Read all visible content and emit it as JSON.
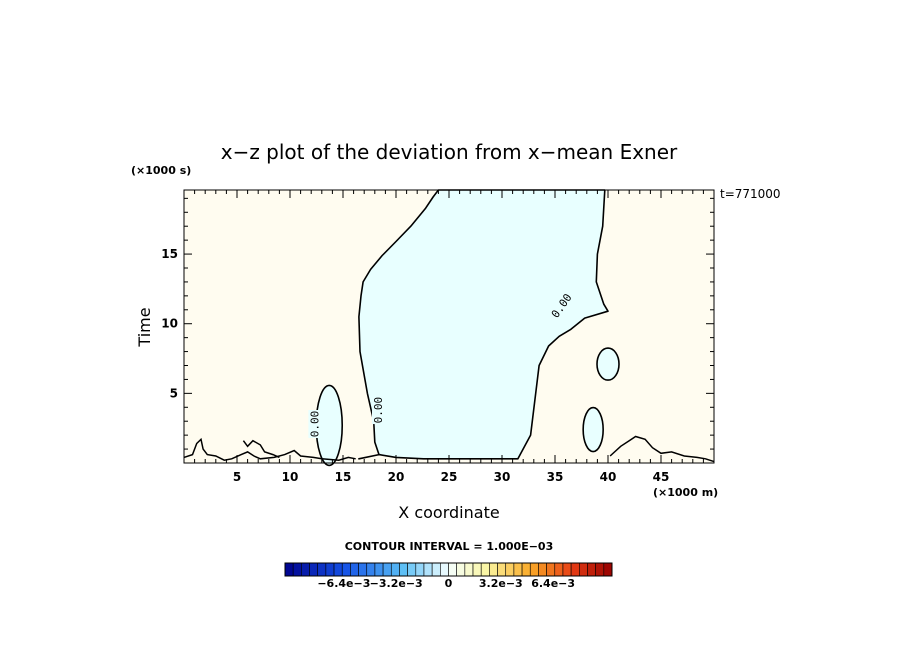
{
  "chart_data": {
    "type": "contour",
    "title": "x−z plot of the deviation from x−mean Exner",
    "xlabel": "X coordinate",
    "ylabel": "Time",
    "x_unit": "(×1000 m)",
    "y_unit": "(×1000 s)",
    "time_label": "t=771000",
    "xlim": [
      0,
      50
    ],
    "ylim": [
      0,
      19.6
    ],
    "x_ticks": [
      5,
      10,
      15,
      20,
      25,
      30,
      35,
      40,
      45
    ],
    "y_ticks": [
      5,
      10,
      15
    ],
    "contour_interval": "CONTOUR INTERVAL = 1.000E−03",
    "contour_level": "0.00",
    "regions": [
      {
        "sign": "negative",
        "color": "#e8ffff",
        "description_level": "0 to -1e-3"
      },
      {
        "sign": "positive",
        "color": "#fffcf0",
        "description_level": "0 to 1e-3"
      }
    ],
    "zero_contour_main": {
      "x": [
        16.5,
        18.4,
        18.0,
        17.9,
        17.3,
        16.6,
        16.5,
        16.7,
        16.9,
        17.6,
        18.7,
        20.0,
        21.4,
        22.8,
        23.5,
        24.0,
        24.6,
        25.6,
        27.2,
        30.0,
        31.9,
        33.5,
        34.8,
        35.6,
        37.0,
        38.0,
        39.7,
        39.5,
        39.0,
        38.9,
        39.6,
        40.0,
        37.8,
        36.5,
        35.4,
        34.4,
        33.5,
        32.7,
        31.5,
        28.0,
        24.0,
        22.6,
        20.0,
        18.4,
        16.5
      ],
      "y": [
        0.3,
        0.6,
        1.5,
        3.0,
        5.0,
        8.0,
        10.5,
        12.0,
        13.0,
        13.9,
        14.9,
        15.9,
        17.0,
        18.3,
        19.1,
        19.6,
        19.6,
        19.6,
        19.6,
        19.6,
        19.6,
        19.6,
        19.6,
        19.6,
        19.6,
        19.6,
        19.6,
        17.0,
        15.0,
        13.0,
        11.4,
        10.9,
        10.4,
        9.6,
        9.1,
        8.4,
        7.0,
        2.0,
        0.3,
        0.3,
        0.3,
        0.3,
        0.4,
        0.6,
        0.3
      ]
    },
    "colorbar": {
      "labels": [
        "−6.4e−3",
        "−3.2e−3",
        "0",
        "3.2e−3",
        "6.4e−3"
      ],
      "label_levels": [
        -6.4,
        -3.2,
        0,
        3.2,
        6.4
      ],
      "min": -10,
      "max": 10,
      "n_steps": 40
    }
  }
}
